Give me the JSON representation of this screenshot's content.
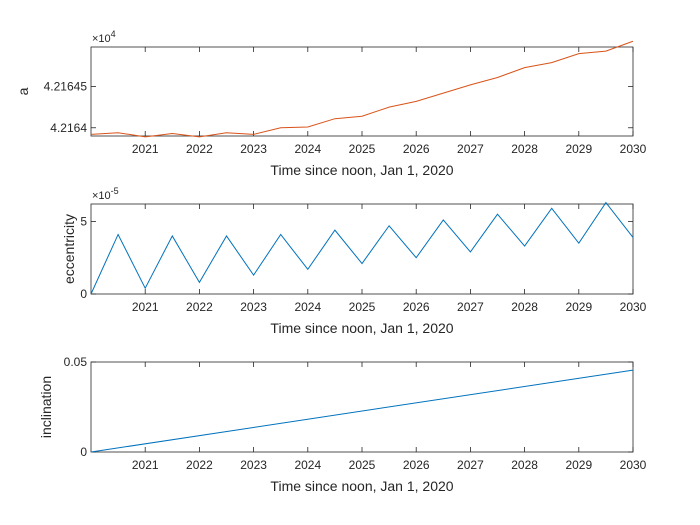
{
  "chart_data": [
    {
      "type": "line",
      "xlabel": "Time since noon, Jan 1, 2020",
      "ylabel": "a",
      "x_tick_labels": [
        "2021",
        "2022",
        "2023",
        "2024",
        "2025",
        "2026",
        "2027",
        "2028",
        "2029",
        "2030"
      ],
      "x_ticks": [
        1,
        2,
        3,
        4,
        5,
        6,
        7,
        8,
        9,
        10
      ],
      "xlim": [
        0,
        10
      ],
      "y_ticks": [
        4.2164,
        4.21645
      ],
      "y_tick_labels": [
        "4.2164",
        "4.21645"
      ],
      "ylim": [
        4.21639,
        4.216498
      ],
      "exponent_label": "×10",
      "exponent_power": "4",
      "color": "#D95319",
      "series": [
        {
          "x": [
            0,
            0.5,
            1,
            1.5,
            2,
            2.5,
            3,
            3.5,
            4,
            4.5,
            5,
            5.5,
            6,
            6.5,
            7,
            7.5,
            8,
            8.5,
            9,
            9.5,
            10
          ],
          "y": [
            4.216392,
            4.216394,
            4.216389,
            4.216393,
            4.216389,
            4.216394,
            4.216392,
            4.2164,
            4.216401,
            4.216411,
            4.216414,
            4.216425,
            4.216432,
            4.216442,
            4.216452,
            4.216461,
            4.216473,
            4.216479,
            4.21649,
            4.216493,
            4.216505
          ]
        }
      ]
    },
    {
      "type": "line",
      "xlabel": "Time since noon, Jan 1, 2020",
      "ylabel": "eccentricity",
      "x_tick_labels": [
        "2021",
        "2022",
        "2023",
        "2024",
        "2025",
        "2026",
        "2027",
        "2028",
        "2029",
        "2030"
      ],
      "x_ticks": [
        1,
        2,
        3,
        4,
        5,
        6,
        7,
        8,
        9,
        10
      ],
      "xlim": [
        0,
        10
      ],
      "y_ticks": [
        0,
        5
      ],
      "y_tick_labels": [
        "0",
        "5"
      ],
      "ylim": [
        0,
        6.2
      ],
      "exponent_label": "×10",
      "exponent_power": "-5",
      "color": "#0072BD",
      "series": [
        {
          "x": [
            0,
            0.5,
            1,
            1.5,
            2,
            2.5,
            3,
            3.5,
            4,
            4.5,
            5,
            5.5,
            6,
            6.5,
            7,
            7.5,
            8,
            8.5,
            9,
            9.5,
            10
          ],
          "y": [
            0,
            4.1,
            0.4,
            4.0,
            0.8,
            4.0,
            1.3,
            4.1,
            1.7,
            4.4,
            2.1,
            4.7,
            2.5,
            5.1,
            2.9,
            5.5,
            3.3,
            5.9,
            3.5,
            6.3,
            3.9
          ]
        }
      ]
    },
    {
      "type": "line",
      "xlabel": "Time since noon, Jan 1, 2020",
      "ylabel": "inclination",
      "x_tick_labels": [
        "2021",
        "2022",
        "2023",
        "2024",
        "2025",
        "2026",
        "2027",
        "2028",
        "2029",
        "2030"
      ],
      "x_ticks": [
        1,
        2,
        3,
        4,
        5,
        6,
        7,
        8,
        9,
        10
      ],
      "xlim": [
        0,
        10
      ],
      "y_ticks": [
        0,
        0.05
      ],
      "y_tick_labels": [
        "0",
        "0.05"
      ],
      "ylim": [
        0,
        0.05
      ],
      "color": "#0072BD",
      "series": [
        {
          "x": [
            0,
            10
          ],
          "y": [
            0,
            0.0455
          ]
        }
      ]
    }
  ]
}
